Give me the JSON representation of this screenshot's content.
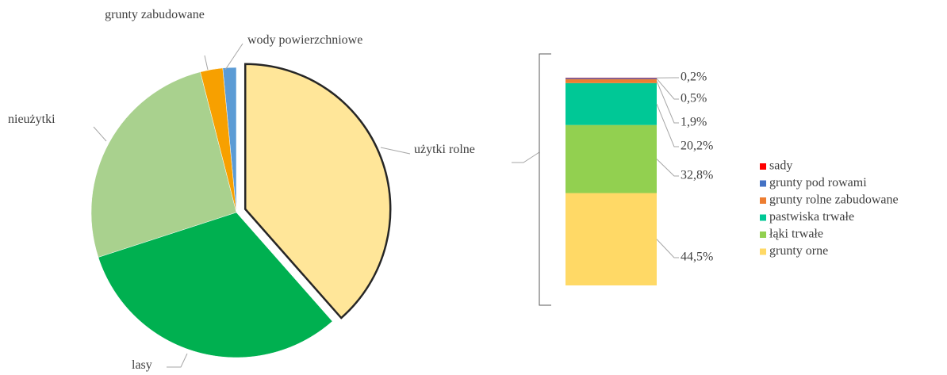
{
  "chart_data": [
    {
      "type": "pie",
      "categories": [
        "użytki rolne",
        "lasy",
        "nieużytki",
        "grunty zabudowane",
        "wody powierzchniowe"
      ],
      "values": [
        38.5,
        31.5,
        26,
        2.5,
        1.5
      ],
      "colors": [
        "#ffe699",
        "#00b050",
        "#a9d18e",
        "#f7a000",
        "#5b9bd5"
      ],
      "explode": [
        true,
        false,
        false,
        false,
        false
      ]
    },
    {
      "type": "stacked-bar",
      "categories": [
        null
      ],
      "series": [
        {
          "name": "grunty orne",
          "color": "#ffd966",
          "values": [
            44.5
          ],
          "value_labels": [
            "44,5%"
          ]
        },
        {
          "name": "łąki trwałe",
          "color": "#92d050",
          "values": [
            32.8
          ],
          "value_labels": [
            "32,8%"
          ]
        },
        {
          "name": "pastwiska trwałe",
          "color": "#00c896",
          "values": [
            20.2
          ],
          "value_labels": [
            "20,2%"
          ]
        },
        {
          "name": "grunty rolne zabudowane",
          "color": "#ed7d31",
          "values": [
            1.9
          ],
          "value_labels": [
            "1,9%"
          ]
        },
        {
          "name": "grunty pod rowami",
          "color": "#4472c4",
          "values": [
            0.5
          ],
          "value_labels": [
            "0,5%"
          ]
        },
        {
          "name": "sady",
          "color": "#ff0000",
          "values": [
            0.2
          ],
          "value_labels": [
            "0,2%"
          ]
        }
      ]
    }
  ]
}
